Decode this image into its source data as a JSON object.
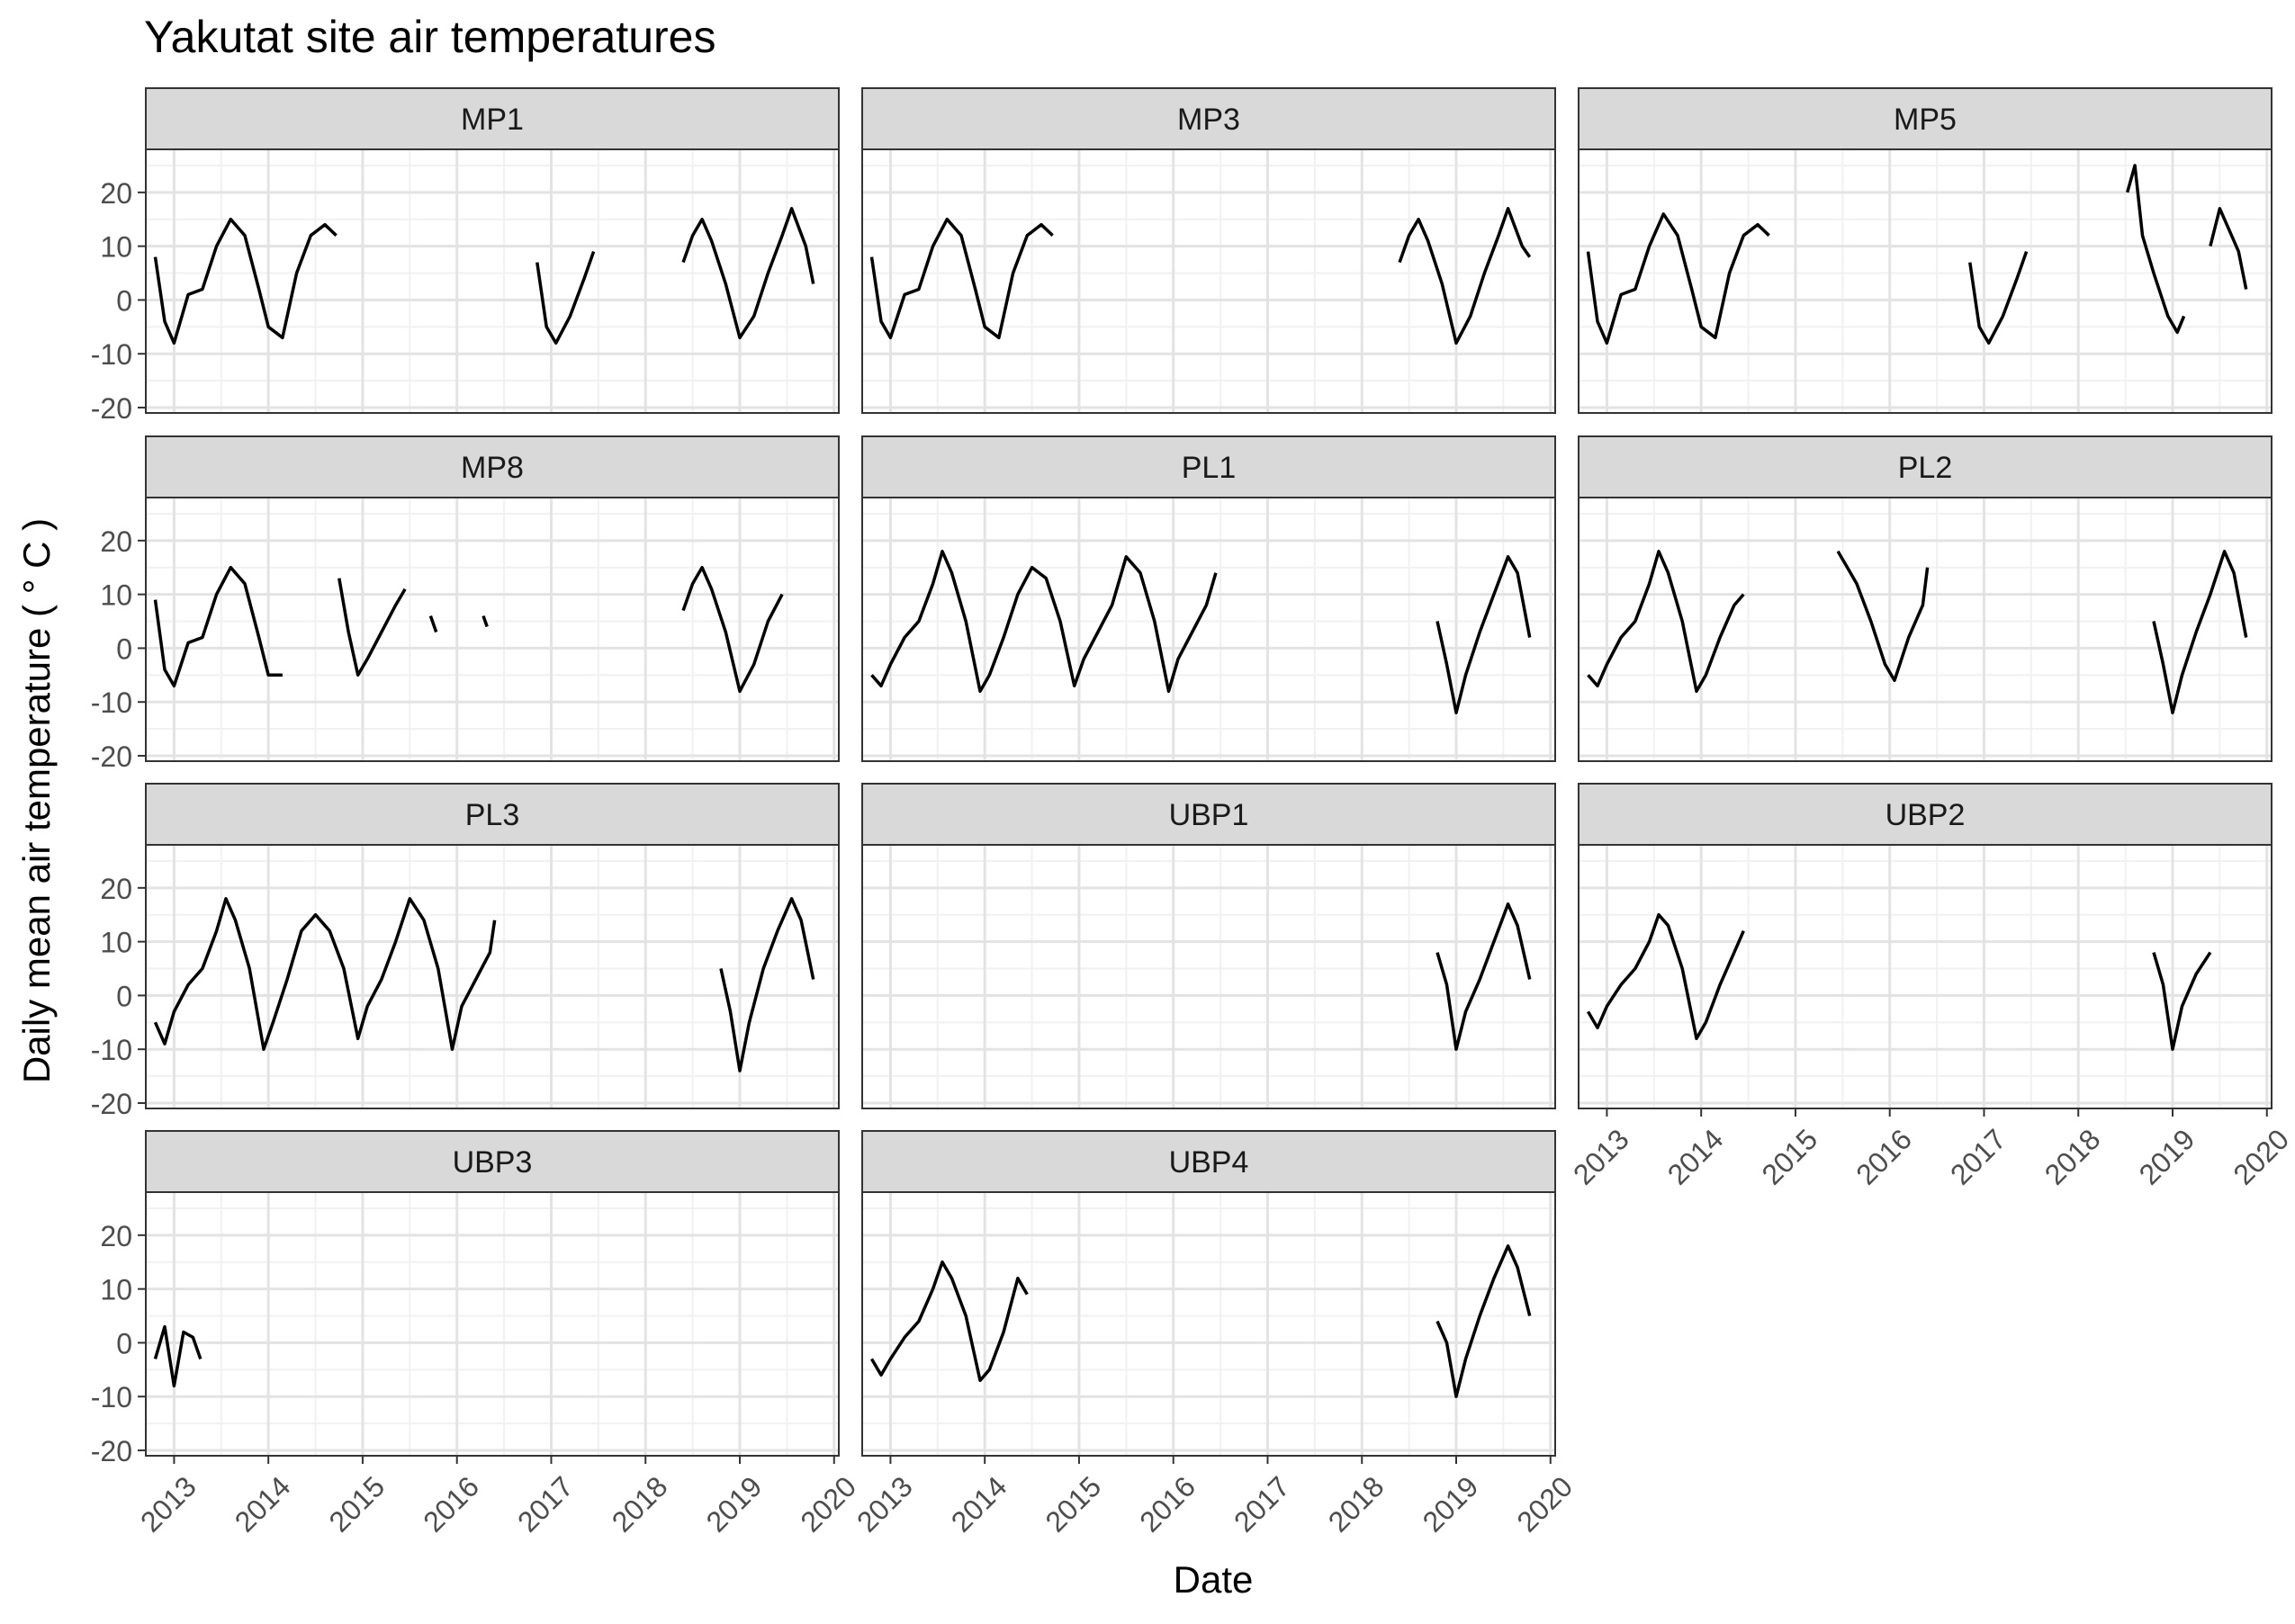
{
  "chart_data": {
    "type": "line",
    "title": "Yakutat site air temperatures",
    "xlabel": "Date",
    "ylabel": "Daily mean air temperature ( ° C )",
    "x_ticks": [
      "2013",
      "2014",
      "2015",
      "2016",
      "2017",
      "2018",
      "2019",
      "2020"
    ],
    "y_ticks": [
      -20,
      -10,
      0,
      10,
      20
    ],
    "xlim": [
      2012.7,
      2020.05
    ],
    "ylim": [
      -21,
      28
    ],
    "grid": true,
    "legend": "none",
    "line_color": "#000000",
    "panels": [
      {
        "name": "MP1",
        "segments": [
          {
            "x": [
              2012.8,
              2012.9,
              2013.0,
              2013.15,
              2013.3,
              2013.45,
              2013.6,
              2013.75,
              2013.9,
              2014.0,
              2014.15,
              2014.3,
              2014.45,
              2014.6,
              2014.72
            ],
            "y": [
              8,
              -4,
              -8,
              1,
              2,
              10,
              15,
              12,
              2,
              -5,
              -7,
              5,
              12,
              14,
              12
            ]
          },
          {
            "x": [
              2016.85,
              2016.95,
              2017.05,
              2017.2,
              2017.35,
              2017.45
            ],
            "y": [
              7,
              -5,
              -8,
              -3,
              4,
              9
            ]
          },
          {
            "x": [
              2018.4,
              2018.5,
              2018.6,
              2018.7,
              2018.85,
              2019.0,
              2019.15,
              2019.3,
              2019.45,
              2019.55,
              2019.7,
              2019.78
            ],
            "y": [
              7,
              12,
              15,
              11,
              3,
              -7,
              -3,
              5,
              12,
              17,
              10,
              3
            ]
          }
        ]
      },
      {
        "name": "MP3",
        "segments": [
          {
            "x": [
              2012.8,
              2012.9,
              2013.0,
              2013.15,
              2013.3,
              2013.45,
              2013.6,
              2013.75,
              2013.9,
              2014.0,
              2014.15,
              2014.3,
              2014.45,
              2014.6,
              2014.72
            ],
            "y": [
              8,
              -4,
              -7,
              1,
              2,
              10,
              15,
              12,
              2,
              -5,
              -7,
              5,
              12,
              14,
              12
            ]
          },
          {
            "x": [
              2018.4,
              2018.5,
              2018.6,
              2018.7,
              2018.85,
              2019.0,
              2019.15,
              2019.3,
              2019.45,
              2019.55,
              2019.7,
              2019.78
            ],
            "y": [
              7,
              12,
              15,
              11,
              3,
              -8,
              -3,
              5,
              12,
              17,
              10,
              8
            ]
          }
        ]
      },
      {
        "name": "MP5",
        "segments": [
          {
            "x": [
              2012.8,
              2012.9,
              2013.0,
              2013.15,
              2013.3,
              2013.45,
              2013.6,
              2013.75,
              2013.9,
              2014.0,
              2014.15,
              2014.3,
              2014.45,
              2014.6,
              2014.72
            ],
            "y": [
              9,
              -4,
              -8,
              1,
              2,
              10,
              16,
              12,
              2,
              -5,
              -7,
              5,
              12,
              14,
              12
            ]
          },
          {
            "x": [
              2016.85,
              2016.95,
              2017.05,
              2017.2,
              2017.35,
              2017.45
            ],
            "y": [
              7,
              -5,
              -8,
              -3,
              4,
              9
            ]
          },
          {
            "x": [
              2018.52,
              2018.6,
              2018.68,
              2018.8,
              2018.95,
              2019.05,
              2019.12
            ],
            "y": [
              20,
              25,
              12,
              5,
              -3,
              -6,
              -3
            ]
          },
          {
            "x": [
              2019.4,
              2019.5,
              2019.6,
              2019.7,
              2019.78
            ],
            "y": [
              10,
              17,
              13,
              9,
              2
            ]
          }
        ]
      },
      {
        "name": "MP8",
        "segments": [
          {
            "x": [
              2012.8,
              2012.9,
              2013.0,
              2013.15,
              2013.3,
              2013.45,
              2013.6,
              2013.75,
              2013.9,
              2014.0,
              2014.15
            ],
            "y": [
              9,
              -4,
              -7,
              1,
              2,
              10,
              15,
              12,
              2,
              -5,
              -5
            ]
          },
          {
            "x": [
              2014.75,
              2014.85,
              2014.95,
              2015.05,
              2015.2,
              2015.35,
              2015.45
            ],
            "y": [
              13,
              3,
              -5,
              -2,
              3,
              8,
              11
            ]
          },
          {
            "x": [
              2015.72,
              2015.78
            ],
            "y": [
              6,
              3
            ]
          },
          {
            "x": [
              2016.28,
              2016.32
            ],
            "y": [
              6,
              4
            ]
          },
          {
            "x": [
              2018.4,
              2018.5,
              2018.6,
              2018.7,
              2018.85,
              2019.0,
              2019.15,
              2019.3,
              2019.45
            ],
            "y": [
              7,
              12,
              15,
              11,
              3,
              -8,
              -3,
              5,
              10
            ]
          }
        ]
      },
      {
        "name": "PL1",
        "segments": [
          {
            "x": [
              2012.8,
              2012.9,
              2013.0,
              2013.15,
              2013.3,
              2013.45,
              2013.55,
              2013.65,
              2013.8,
              2013.95,
              2014.05,
              2014.2,
              2014.35,
              2014.5,
              2014.65,
              2014.8,
              2014.95,
              2015.05,
              2015.2,
              2015.35,
              2015.5,
              2015.65,
              2015.8,
              2015.95,
              2016.05,
              2016.2,
              2016.35,
              2016.45
            ],
            "y": [
              -5,
              -7,
              -3,
              2,
              5,
              12,
              18,
              14,
              5,
              -8,
              -5,
              2,
              10,
              15,
              13,
              5,
              -7,
              -2,
              3,
              8,
              17,
              14,
              5,
              -8,
              -2,
              3,
              8,
              14
            ]
          },
          {
            "x": [
              2018.8,
              2018.9,
              2019.0,
              2019.1,
              2019.25,
              2019.4,
              2019.55,
              2019.65,
              2019.78
            ],
            "y": [
              5,
              -3,
              -12,
              -5,
              3,
              10,
              17,
              14,
              2
            ]
          }
        ]
      },
      {
        "name": "PL2",
        "segments": [
          {
            "x": [
              2012.8,
              2012.9,
              2013.0,
              2013.15,
              2013.3,
              2013.45,
              2013.55,
              2013.65,
              2013.8,
              2013.95,
              2014.05,
              2014.2,
              2014.35,
              2014.45
            ],
            "y": [
              -5,
              -7,
              -3,
              2,
              5,
              12,
              18,
              14,
              5,
              -8,
              -5,
              2,
              8,
              10
            ]
          },
          {
            "x": [
              2015.45,
              2015.55,
              2015.65,
              2015.8,
              2015.95,
              2016.05,
              2016.2,
              2016.35,
              2016.4
            ],
            "y": [
              18,
              15,
              12,
              5,
              -3,
              -6,
              2,
              8,
              15
            ]
          },
          {
            "x": [
              2018.8,
              2018.9,
              2019.0,
              2019.1,
              2019.25,
              2019.4,
              2019.55,
              2019.65,
              2019.78
            ],
            "y": [
              5,
              -3,
              -12,
              -5,
              3,
              10,
              18,
              14,
              2
            ]
          }
        ]
      },
      {
        "name": "PL3",
        "segments": [
          {
            "x": [
              2012.8,
              2012.9,
              2013.0,
              2013.15,
              2013.3,
              2013.45,
              2013.55,
              2013.65,
              2013.8,
              2013.95,
              2014.05,
              2014.2,
              2014.35,
              2014.5,
              2014.65,
              2014.8,
              2014.95,
              2015.05,
              2015.2,
              2015.35,
              2015.5,
              2015.65,
              2015.8,
              2015.95,
              2016.05,
              2016.2,
              2016.35,
              2016.4
            ],
            "y": [
              -5,
              -9,
              -3,
              2,
              5,
              12,
              18,
              14,
              5,
              -10,
              -5,
              3,
              12,
              15,
              12,
              5,
              -8,
              -2,
              3,
              10,
              18,
              14,
              5,
              -10,
              -2,
              3,
              8,
              14
            ]
          },
          {
            "x": [
              2018.8,
              2018.9,
              2019.0,
              2019.1,
              2019.25,
              2019.4,
              2019.55,
              2019.65,
              2019.78
            ],
            "y": [
              5,
              -3,
              -14,
              -5,
              5,
              12,
              18,
              14,
              3
            ]
          }
        ]
      },
      {
        "name": "UBP1",
        "segments": [
          {
            "x": [
              2018.8,
              2018.9,
              2019.0,
              2019.1,
              2019.25,
              2019.4,
              2019.55,
              2019.65,
              2019.78
            ],
            "y": [
              8,
              2,
              -10,
              -3,
              3,
              10,
              17,
              13,
              3
            ]
          }
        ]
      },
      {
        "name": "UBP2",
        "segments": [
          {
            "x": [
              2012.8,
              2012.9,
              2013.0,
              2013.15,
              2013.3,
              2013.45,
              2013.55,
              2013.65,
              2013.8,
              2013.95,
              2014.05,
              2014.2,
              2014.35,
              2014.45
            ],
            "y": [
              -3,
              -6,
              -2,
              2,
              5,
              10,
              15,
              13,
              5,
              -8,
              -5,
              2,
              8,
              12
            ]
          },
          {
            "x": [
              2018.8,
              2018.9,
              2019.0,
              2019.1,
              2019.25,
              2019.4
            ],
            "y": [
              8,
              2,
              -10,
              -2,
              4,
              8
            ]
          }
        ]
      },
      {
        "name": "UBP3",
        "segments": [
          {
            "x": [
              2012.8,
              2012.9,
              2013.0,
              2013.1,
              2013.2,
              2013.28
            ],
            "y": [
              -3,
              3,
              -8,
              2,
              1,
              -3
            ]
          }
        ]
      },
      {
        "name": "UBP4",
        "segments": [
          {
            "x": [
              2012.8,
              2012.9,
              2013.0,
              2013.15,
              2013.3,
              2013.45,
              2013.55,
              2013.65,
              2013.8,
              2013.95,
              2014.05,
              2014.2,
              2014.35,
              2014.45
            ],
            "y": [
              -3,
              -6,
              -3,
              1,
              4,
              10,
              15,
              12,
              5,
              -7,
              -5,
              2,
              12,
              9
            ]
          },
          {
            "x": [
              2018.8,
              2018.9,
              2019.0,
              2019.1,
              2019.25,
              2019.4,
              2019.55,
              2019.65,
              2019.78
            ],
            "y": [
              4,
              0,
              -10,
              -3,
              5,
              12,
              18,
              14,
              5
            ]
          }
        ]
      }
    ]
  }
}
